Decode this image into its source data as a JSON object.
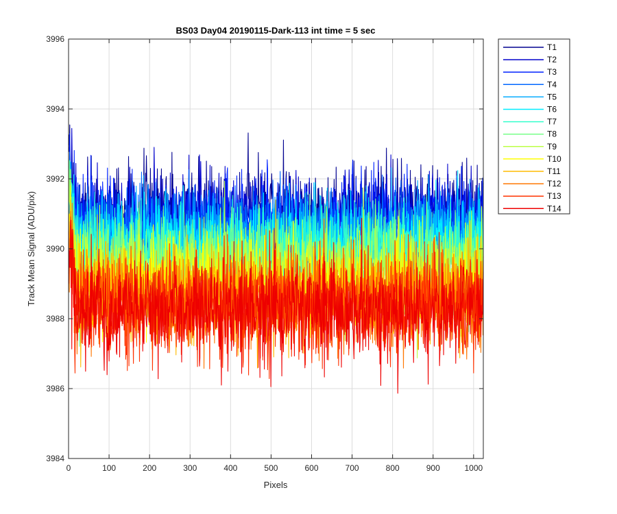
{
  "chart_data": {
    "type": "line",
    "title": "BS03 Day04 20190115-Dark-113 int time = 5 sec",
    "xlabel": "Pixels",
    "ylabel": "Track Mean Signal (ADU/pix)",
    "xlim": [
      0,
      1024
    ],
    "ylim": [
      3984,
      3996
    ],
    "x_ticks": [
      0,
      100,
      200,
      300,
      400,
      500,
      600,
      700,
      800,
      900,
      1000
    ],
    "y_ticks": [
      3984,
      3986,
      3988,
      3990,
      3992,
      3994,
      3996
    ],
    "x_tick_labels": [
      "0",
      "100",
      "200",
      "300",
      "400",
      "500",
      "600",
      "700",
      "800",
      "900",
      "1000"
    ],
    "y_tick_labels": [
      "3984",
      "3986",
      "3988",
      "3990",
      "3992",
      "3994",
      "3996"
    ],
    "grid": true,
    "legend_position": "outside-top-right",
    "x_points": 1024,
    "series": [
      {
        "name": "T1",
        "color": "#00008f",
        "mean": 3991.0,
        "spread": 0.75,
        "spike_max": 3994.5,
        "spike_min": 3987.0
      },
      {
        "name": "T2",
        "color": "#0000cc",
        "mean": 3990.9,
        "spread": 0.75,
        "spike_max": 3993.5,
        "spike_min": 3986.6
      },
      {
        "name": "T3",
        "color": "#0022ff",
        "mean": 3990.7,
        "spread": 0.75,
        "spike_max": 3993.3,
        "spike_min": 3986.7
      },
      {
        "name": "T4",
        "color": "#0066ff",
        "mean": 3990.5,
        "spread": 0.75,
        "spike_max": 3993.8,
        "spike_min": 3986.6
      },
      {
        "name": "T5",
        "color": "#00aaff",
        "mean": 3990.3,
        "spread": 0.75,
        "spike_max": 3993.2,
        "spike_min": 3986.5
      },
      {
        "name": "T6",
        "color": "#00eeff",
        "mean": 3990.1,
        "spread": 0.75,
        "spike_max": 3992.9,
        "spike_min": 3986.4
      },
      {
        "name": "T7",
        "color": "#33ffcc",
        "mean": 3989.9,
        "spread": 0.75,
        "spike_max": 3992.7,
        "spike_min": 3986.3
      },
      {
        "name": "T8",
        "color": "#77ff88",
        "mean": 3989.6,
        "spread": 0.75,
        "spike_max": 3992.6,
        "spike_min": 3986.1
      },
      {
        "name": "T9",
        "color": "#bbff44",
        "mean": 3989.3,
        "spread": 0.8,
        "spike_max": 3992.4,
        "spike_min": 3985.8
      },
      {
        "name": "T10",
        "color": "#ffff00",
        "mean": 3989.0,
        "spread": 0.8,
        "spike_max": 3992.2,
        "spike_min": 3985.1
      },
      {
        "name": "T11",
        "color": "#ffbb00",
        "mean": 3988.7,
        "spread": 0.8,
        "spike_max": 3992.0,
        "spike_min": 3985.6
      },
      {
        "name": "T12",
        "color": "#ff7700",
        "mean": 3988.5,
        "spread": 0.8,
        "spike_max": 3991.8,
        "spike_min": 3985.5
      },
      {
        "name": "T13",
        "color": "#ff3300",
        "mean": 3988.4,
        "spread": 0.85,
        "spike_max": 3991.7,
        "spike_min": 3985.2
      },
      {
        "name": "T14",
        "color": "#ee0000",
        "mean": 3988.3,
        "spread": 0.85,
        "spike_max": 3993.6,
        "spike_min": 3984.5
      }
    ]
  }
}
